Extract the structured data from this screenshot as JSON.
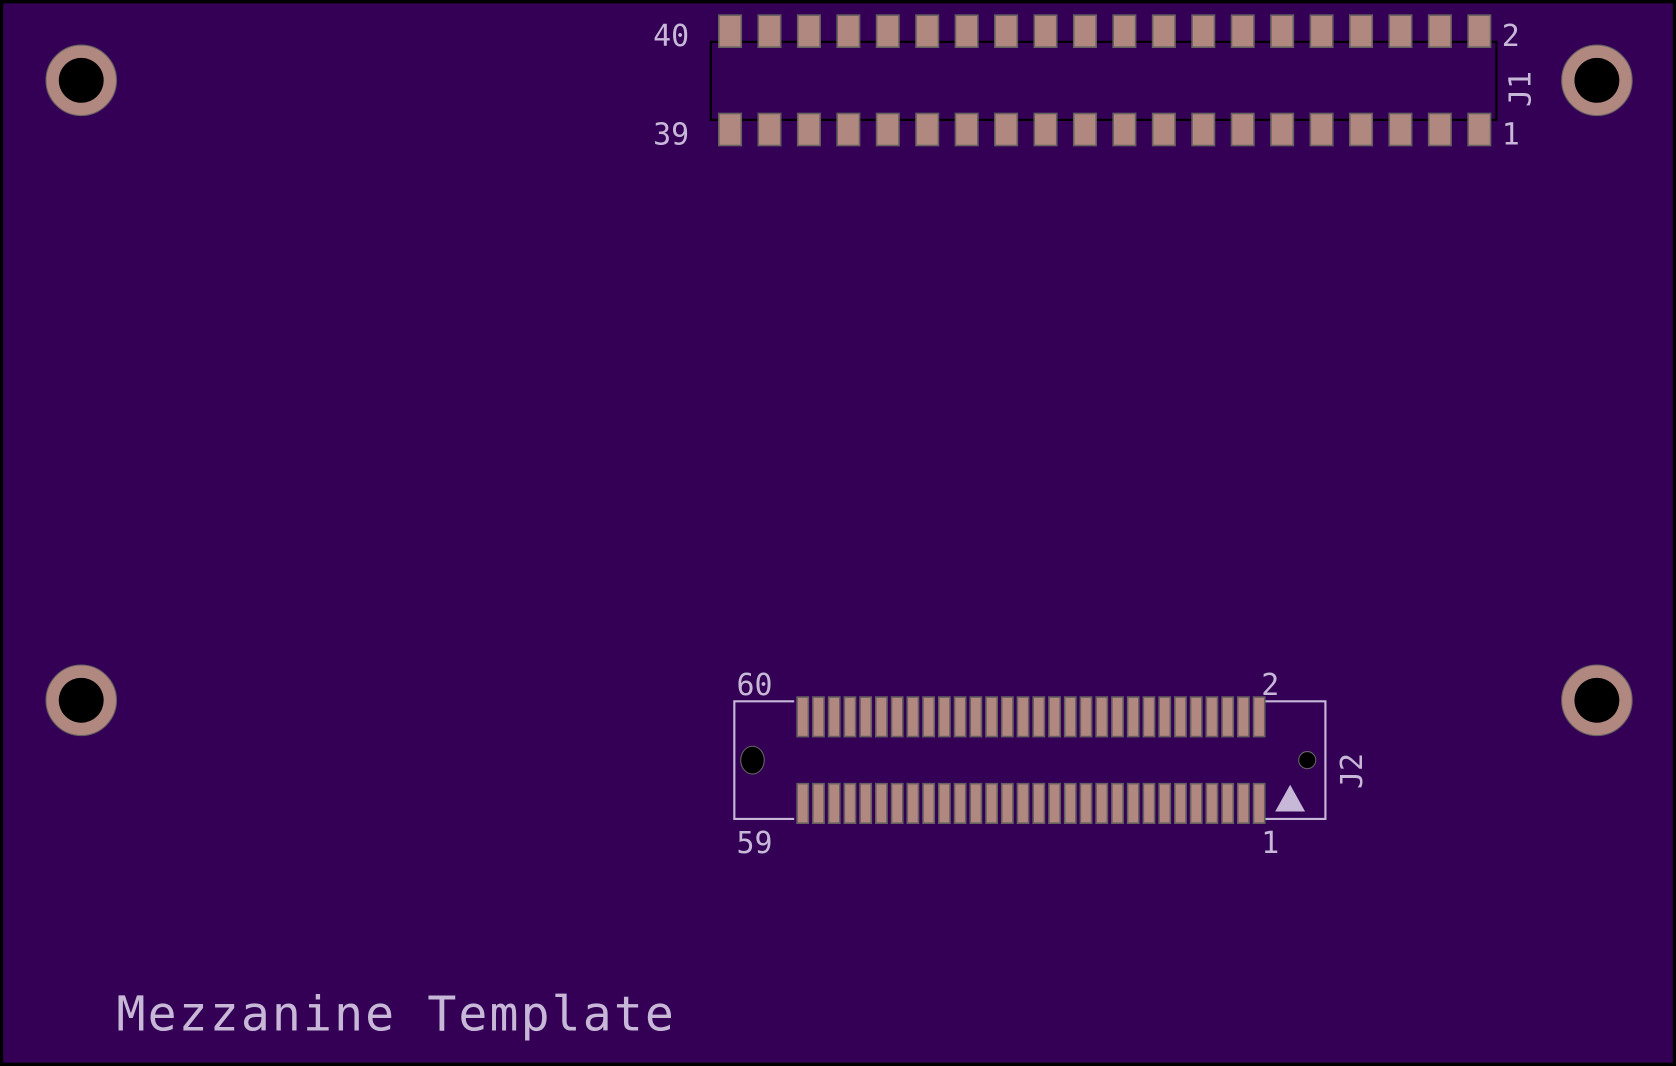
{
  "colors": {
    "board": "#330055",
    "pad": "#b08880",
    "pad_edge": "#666060",
    "silkscreen": "#c8b8d8",
    "drill": "#000000",
    "outline": "#000000"
  },
  "board_label": "Mezzanine Template",
  "connectors": [
    {
      "ref": "J1",
      "pins_per_row": 20,
      "first_top": "40",
      "last_top": "2",
      "first_bottom": "39",
      "last_bottom": "1"
    },
    {
      "ref": "J2",
      "pins_per_row": 30,
      "first_top": "60",
      "last_top": "2",
      "first_bottom": "59",
      "last_bottom": "1"
    }
  ],
  "mounting_holes": 4
}
